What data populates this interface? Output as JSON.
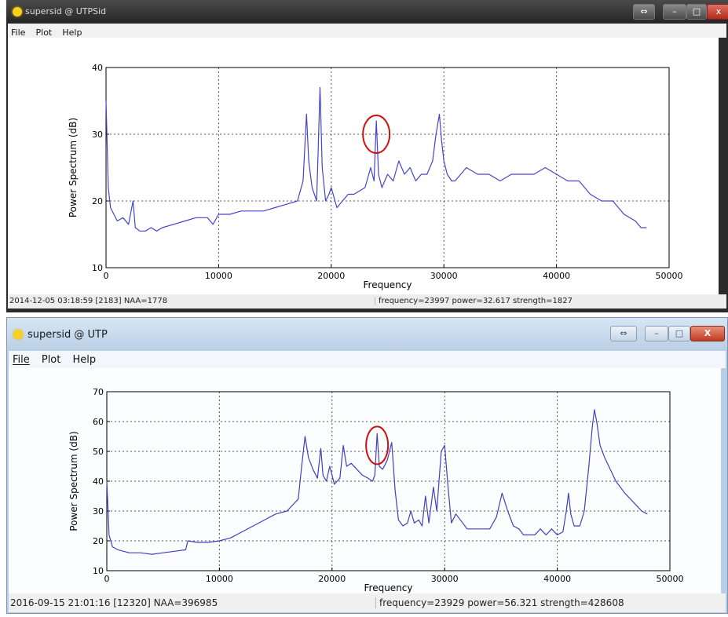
{
  "windows": [
    {
      "title": "supersid @ UTPSid",
      "menu": [
        "File",
        "Plot",
        "Help"
      ],
      "status_left": "2014-12-05 03:18:59  [2183]  NAA=1778",
      "status_right": "frequency=23997   power=32.617   strength=1827",
      "line_color": "#4444cc",
      "highlight_color": "#cc1111"
    },
    {
      "title": "supersid @ UTP",
      "menu": [
        "File",
        "Plot",
        "Help"
      ],
      "status_left": "2016-09-15 21:01:16  [12320]  NAA=396985",
      "status_right": "frequency=23929   power=56.321   strength=428608",
      "line_color": "#4040c0",
      "highlight_color": "#cc1111"
    }
  ],
  "chart_data": [
    {
      "type": "line",
      "xlabel": "Frequency",
      "ylabel": "Power Spectrum (dB)",
      "xlim": [
        0,
        50000
      ],
      "ylim": [
        10,
        40
      ],
      "xticks": [
        0,
        10000,
        20000,
        30000,
        40000,
        50000
      ],
      "yticks": [
        10,
        20,
        30,
        40
      ],
      "grid": true,
      "highlight": {
        "x": 24000,
        "y": 30
      },
      "series": [
        {
          "x": [
            0,
            200,
            400,
            700,
            1000,
            1500,
            2000,
            2400,
            2600,
            3000,
            3500,
            4000,
            4500,
            5000,
            6000,
            7000,
            8000,
            9000,
            9500,
            10000,
            11000,
            12000,
            13000,
            14000,
            15000,
            16000,
            17000,
            17500,
            17800,
            18000,
            18300,
            18700,
            19000,
            19200,
            19500,
            19800,
            20000,
            20500,
            21000,
            21500,
            22000,
            23000,
            23500,
            23800,
            24000,
            24200,
            24500,
            25000,
            25500,
            26000,
            26500,
            27000,
            27500,
            28000,
            28500,
            29000,
            29300,
            29600,
            29800,
            30000,
            30300,
            30700,
            31000,
            32000,
            33000,
            34000,
            35000,
            36000,
            37000,
            38000,
            39000,
            40000,
            41000,
            42000,
            43000,
            44000,
            45000,
            46000,
            47000,
            47500,
            48000
          ],
          "values": [
            35,
            22,
            19,
            18,
            17,
            17.5,
            16.5,
            20,
            16,
            15.5,
            15.5,
            16,
            15.5,
            16,
            16.5,
            17,
            17.5,
            17.5,
            16.5,
            18,
            18,
            18.5,
            18.5,
            18.5,
            19,
            19.5,
            20,
            23,
            33,
            26,
            22,
            20,
            37,
            25,
            20,
            21,
            22,
            19,
            20,
            21,
            21,
            22,
            25,
            23,
            32,
            24,
            22,
            24,
            23,
            26,
            24,
            25,
            23,
            24,
            24,
            26,
            30,
            33,
            29,
            26,
            24,
            23,
            23,
            25,
            24,
            24,
            23,
            24,
            24,
            24,
            25,
            24,
            23,
            23,
            21,
            20,
            20,
            18,
            17,
            16,
            16
          ]
        }
      ]
    },
    {
      "type": "line",
      "xlabel": "Frequency",
      "ylabel": "Power Spectrum (dB)",
      "xlim": [
        0,
        50000
      ],
      "ylim": [
        10,
        70
      ],
      "xticks": [
        0,
        10000,
        20000,
        30000,
        40000,
        50000
      ],
      "yticks": [
        10,
        20,
        30,
        40,
        50,
        60,
        70
      ],
      "grid": true,
      "highlight": {
        "x": 24000,
        "y": 52
      },
      "series": [
        {
          "x": [
            0,
            200,
            500,
            1000,
            2000,
            3000,
            4000,
            5000,
            6000,
            7000,
            7200,
            8000,
            9000,
            10000,
            11000,
            12000,
            13000,
            14000,
            15000,
            16000,
            17000,
            17300,
            17600,
            17900,
            18300,
            18700,
            19000,
            19200,
            19500,
            19800,
            20200,
            20700,
            21000,
            21300,
            21700,
            22200,
            22700,
            23200,
            23600,
            23800,
            24000,
            24200,
            24500,
            24900,
            25300,
            25600,
            25900,
            26300,
            26700,
            27000,
            27300,
            27700,
            28000,
            28300,
            28600,
            29000,
            29300,
            29500,
            29700,
            30000,
            30300,
            30600,
            31000,
            32000,
            33000,
            34000,
            34600,
            35100,
            35600,
            36100,
            36600,
            37000,
            37500,
            38000,
            38500,
            39000,
            39500,
            40000,
            40500,
            40800,
            41000,
            41200,
            41500,
            42000,
            42400,
            42800,
            43100,
            43300,
            43500,
            43800,
            44200,
            44700,
            45200,
            46000,
            47000,
            47500,
            48000
          ],
          "values": [
            40,
            22,
            18,
            17,
            16,
            16,
            15.5,
            16,
            16.5,
            17,
            20,
            19.5,
            19.5,
            20,
            21,
            23,
            25,
            27,
            29,
            30,
            34,
            45,
            55,
            48,
            44,
            41,
            51,
            42,
            40,
            45,
            39,
            41,
            52,
            45,
            46,
            44,
            42,
            41,
            40,
            42,
            56,
            45,
            44,
            47,
            53,
            37,
            27,
            25,
            26,
            30,
            26,
            27,
            25,
            35,
            26,
            38,
            30,
            40,
            50,
            52,
            38,
            26,
            29,
            24,
            24,
            24,
            28,
            36,
            30,
            25,
            24,
            22,
            22,
            22,
            24,
            22,
            24,
            22,
            23,
            30,
            36,
            29,
            25,
            25,
            30,
            45,
            58,
            64,
            60,
            52,
            48,
            44,
            40,
            36,
            32,
            30,
            29
          ]
        }
      ]
    }
  ]
}
